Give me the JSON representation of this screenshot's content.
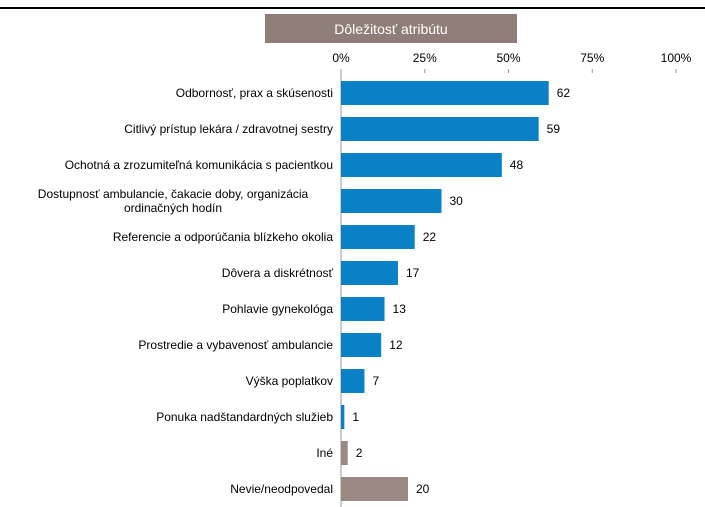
{
  "chart_data": {
    "type": "bar",
    "orientation": "horizontal",
    "title": "Dôležitosť atribútu",
    "categories": [
      "Odbornosť, prax a skúsenosti",
      "Citlivý prístup lekára / zdravotnej sestry",
      "Ochotná a zrozumiteľná komunikácia s pacientkou",
      "Dostupnosť ambulancie, čakacie doby, organizácia ordinačných hodín",
      "Referencie a odporúčania blízkeho okolia",
      "Dôvera a diskrétnosť",
      "Pohlavie gynekológa",
      "Prostredie a vybavenosť ambulancie",
      "Výška poplatkov",
      "Ponuka nadštandardných služieb",
      "Iné",
      "Nevie/neodpovedal"
    ],
    "values": [
      62,
      59,
      48,
      30,
      22,
      17,
      13,
      12,
      7,
      1,
      2,
      20
    ],
    "colors": [
      "#0a80c6",
      "#0a80c6",
      "#0a80c6",
      "#0a80c6",
      "#0a80c6",
      "#0a80c6",
      "#0a80c6",
      "#0a80c6",
      "#0a80c6",
      "#0a80c6",
      "#9b8a83",
      "#9b8a83"
    ],
    "xlim": [
      0,
      100
    ],
    "xticks": [
      {
        "value": 0,
        "label": "0%"
      },
      {
        "value": 25,
        "label": "25%"
      },
      {
        "value": 50,
        "label": "50%"
      },
      {
        "value": 75,
        "label": "75%"
      },
      {
        "value": 100,
        "label": "100%"
      }
    ],
    "grid": false
  }
}
